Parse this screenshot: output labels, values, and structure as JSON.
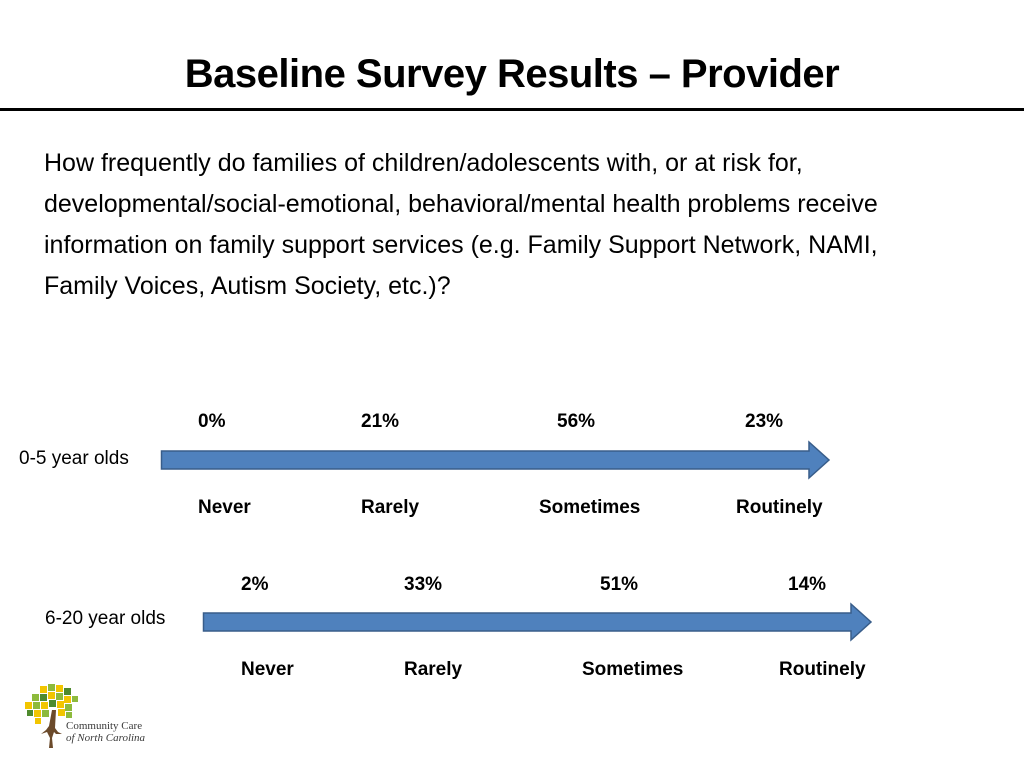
{
  "slide": {
    "title": "Baseline Survey Results – Provider",
    "question": "How frequently do families of children/adolescents with, or at risk for, developmental/social-emotional, behavioral/mental health problems receive information on family support services (e.g. Family Support Network, NAMI, Family Voices, Autism Society, etc.)?"
  },
  "groups": [
    {
      "label": "0-5 year olds",
      "percentages": [
        "0%",
        "21%",
        "56%",
        "23%"
      ],
      "categories": [
        "Never",
        "Rarely",
        "Sometimes",
        "Routinely"
      ]
    },
    {
      "label": "6-20 year olds",
      "percentages": [
        "2%",
        "33%",
        "51%",
        "14%"
      ],
      "categories": [
        "Never",
        "Rarely",
        "Sometimes",
        "Routinely"
      ]
    }
  ],
  "logo": {
    "line1": "Community Care",
    "line2": "of North Carolina"
  },
  "colors": {
    "arrow_fill": "#4f81bd",
    "arrow_stroke": "#385d8a",
    "title_rule": "#000000",
    "logo_yellow": "#f2c500",
    "logo_green": "#8dba3c",
    "logo_dark_green": "#4e8a2e",
    "logo_trunk": "#6b4a2b"
  }
}
